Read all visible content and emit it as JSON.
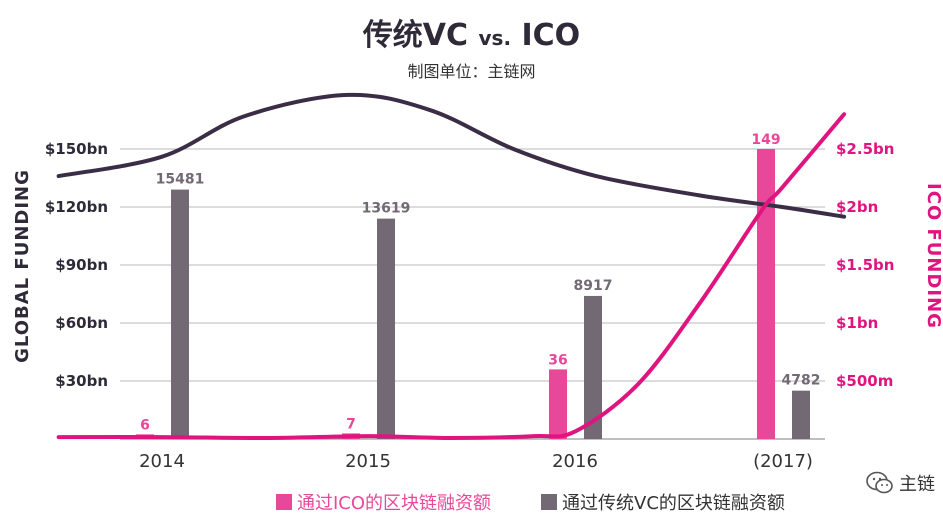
{
  "header": {
    "title_main": "传统VC",
    "title_vs": "vs.",
    "title_end": "ICO",
    "subtitle": "制图单位：主链网"
  },
  "brand": {
    "name": "主链"
  },
  "colors": {
    "ico": "#e8489a",
    "vc": "#726975",
    "ico_line": "#e0147e",
    "vc_line": "#3a2d45",
    "axis_right_text": "#e0147e",
    "axis_left_text": "#2e2a38"
  },
  "chart_data": {
    "type": "bar",
    "categories": [
      "2014",
      "2015",
      "2016",
      "(2017)"
    ],
    "series": [
      {
        "name": "通过ICO的区块链融资额",
        "labels": [
          "6",
          "7",
          "36",
          "149"
        ]
      },
      {
        "name": "通过传统VC的区块链融资额",
        "labels": [
          "15481",
          "13619",
          "8917",
          "4782"
        ]
      }
    ],
    "bar_heights_left_axis_bn": {
      "ico": [
        2.4,
        2.9,
        36,
        150
      ],
      "vc": [
        129,
        114,
        74,
        25
      ]
    },
    "left_axis": {
      "label": "GLOBAL FUNDING",
      "range": [
        0,
        150
      ],
      "ticks": [
        30,
        60,
        90,
        120,
        150
      ],
      "tick_labels": [
        "$30bn",
        "$60bn",
        "$90bn",
        "$120bn",
        "$150bn"
      ]
    },
    "right_axis": {
      "label": "ICO FUNDING",
      "range": [
        0,
        2.5
      ],
      "ticks": [
        0.5,
        1,
        1.5,
        2,
        2.5
      ],
      "tick_labels": [
        "$500m",
        "$1bn",
        "$1.5bn",
        "$2bn",
        "$2.5bn"
      ]
    },
    "trend_lines": {
      "vc_curve_left_axis_bn": [
        [
          2013.5,
          136
        ],
        [
          2014,
          146
        ],
        [
          2014.4,
          167
        ],
        [
          2014.9,
          178
        ],
        [
          2015.3,
          170
        ],
        [
          2015.7,
          150
        ],
        [
          2016.1,
          136
        ],
        [
          2016.6,
          126
        ],
        [
          2017,
          120
        ],
        [
          2017.3,
          115
        ]
      ],
      "ico_curve_left_axis_bn": [
        [
          2013.5,
          1
        ],
        [
          2014,
          1
        ],
        [
          2014.5,
          0.5
        ],
        [
          2015,
          1.5
        ],
        [
          2015.4,
          0.5
        ],
        [
          2015.8,
          1.5
        ],
        [
          2016,
          4
        ],
        [
          2016.3,
          28
        ],
        [
          2016.6,
          70
        ],
        [
          2016.9,
          118
        ],
        [
          2017,
          130
        ],
        [
          2017.3,
          168
        ]
      ]
    },
    "grid": true,
    "legend": "bottom"
  }
}
